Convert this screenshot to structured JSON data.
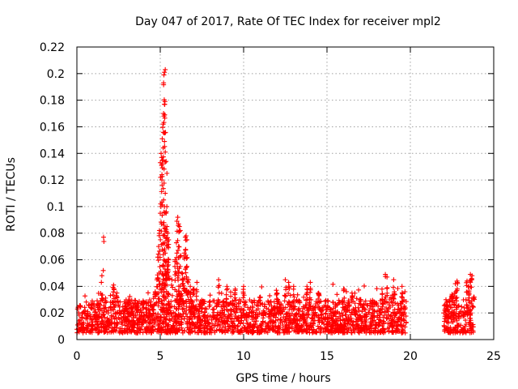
{
  "chart_data": {
    "type": "scatter",
    "title": "Day 047 of 2017, Rate Of TEC Index for receiver mpl2",
    "xlabel": "GPS time / hours",
    "ylabel": "ROTI / TECUs",
    "xlim": [
      0,
      25
    ],
    "ylim": [
      0,
      0.22
    ],
    "x_ticks": [
      {
        "value": 0,
        "label": "0"
      },
      {
        "value": 5,
        "label": "5"
      },
      {
        "value": 10,
        "label": "10"
      },
      {
        "value": 15,
        "label": "15"
      },
      {
        "value": 20,
        "label": "20"
      },
      {
        "value": 25,
        "label": "25"
      }
    ],
    "y_ticks": [
      {
        "value": 0,
        "label": "0"
      },
      {
        "value": 0.02,
        "label": "0.02"
      },
      {
        "value": 0.04,
        "label": "0.04"
      },
      {
        "value": 0.06,
        "label": "0.06"
      },
      {
        "value": 0.08,
        "label": "0.08"
      },
      {
        "value": 0.1,
        "label": "0.1"
      },
      {
        "value": 0.12,
        "label": "0.12"
      },
      {
        "value": 0.14,
        "label": "0.14"
      },
      {
        "value": 0.16,
        "label": "0.16"
      },
      {
        "value": 0.18,
        "label": "0.18"
      },
      {
        "value": 0.2,
        "label": "0.2"
      },
      {
        "value": 0.22,
        "label": "0.22"
      }
    ],
    "grid": true,
    "marker": "+",
    "color": "#ff0000",
    "series": [
      {
        "name": "ROTI mpl2",
        "data_ranges_hours": [
          [
            0,
            19.75
          ],
          [
            22.0,
            23.8
          ]
        ],
        "baseline_min": 0.005,
        "baseline_max": 0.03,
        "peak_points": [
          [
            1.6,
            0.077
          ],
          [
            1.5,
            0.048
          ],
          [
            2.2,
            0.041
          ],
          [
            2.4,
            0.035
          ],
          [
            4.7,
            0.036
          ],
          [
            4.8,
            0.045
          ],
          [
            4.85,
            0.062
          ],
          [
            4.9,
            0.07
          ],
          [
            4.95,
            0.082
          ],
          [
            5.0,
            0.095
          ],
          [
            5.0,
            0.133
          ],
          [
            5.05,
            0.14
          ],
          [
            5.1,
            0.12
          ],
          [
            5.1,
            0.124
          ],
          [
            5.12,
            0.151
          ],
          [
            5.15,
            0.135
          ],
          [
            5.18,
            0.162
          ],
          [
            5.2,
            0.17
          ],
          [
            5.22,
            0.168
          ],
          [
            5.25,
            0.177
          ],
          [
            5.28,
            0.179
          ],
          [
            5.2,
            0.193
          ],
          [
            5.22,
            0.199
          ],
          [
            5.25,
            0.201
          ],
          [
            5.3,
            0.203
          ],
          [
            5.3,
            0.141
          ],
          [
            5.35,
            0.134
          ],
          [
            5.4,
            0.125
          ],
          [
            5.3,
            0.11
          ],
          [
            5.2,
            0.105
          ],
          [
            5.25,
            0.1
          ],
          [
            5.35,
            0.095
          ],
          [
            5.4,
            0.085
          ],
          [
            5.45,
            0.08
          ],
          [
            5.5,
            0.075
          ],
          [
            5.3,
            0.065
          ],
          [
            5.5,
            0.06
          ],
          [
            5.2,
            0.056
          ],
          [
            5.4,
            0.05
          ],
          [
            5.7,
            0.045
          ],
          [
            5.9,
            0.06
          ],
          [
            6.0,
            0.089
          ],
          [
            6.05,
            0.092
          ],
          [
            6.1,
            0.087
          ],
          [
            6.15,
            0.085
          ],
          [
            6.2,
            0.082
          ],
          [
            6.1,
            0.07
          ],
          [
            6.0,
            0.065
          ],
          [
            6.2,
            0.055
          ],
          [
            6.3,
            0.05
          ],
          [
            6.4,
            0.045
          ],
          [
            6.5,
            0.077
          ],
          [
            6.55,
            0.078
          ],
          [
            6.6,
            0.075
          ],
          [
            6.45,
            0.065
          ],
          [
            6.6,
            0.055
          ],
          [
            6.7,
            0.045
          ],
          [
            6.8,
            0.04
          ],
          [
            7.0,
            0.038
          ],
          [
            7.2,
            0.043
          ],
          [
            8.5,
            0.045
          ],
          [
            9.0,
            0.04
          ],
          [
            9.5,
            0.038
          ],
          [
            10.0,
            0.04
          ],
          [
            11.0,
            0.032
          ],
          [
            12.0,
            0.035
          ],
          [
            12.5,
            0.045
          ],
          [
            12.7,
            0.043
          ],
          [
            13.0,
            0.04
          ],
          [
            13.8,
            0.04
          ],
          [
            14.0,
            0.043
          ],
          [
            14.5,
            0.035
          ],
          [
            16.0,
            0.038
          ],
          [
            16.5,
            0.035
          ],
          [
            17.0,
            0.03
          ],
          [
            18.3,
            0.038
          ],
          [
            18.5,
            0.049
          ],
          [
            18.6,
            0.047
          ],
          [
            19.0,
            0.045
          ],
          [
            19.5,
            0.04
          ],
          [
            22.5,
            0.034
          ],
          [
            22.7,
            0.042
          ],
          [
            22.8,
            0.044
          ],
          [
            23.4,
            0.044
          ],
          [
            23.6,
            0.049
          ],
          [
            23.7,
            0.048
          ],
          [
            23.5,
            0.04
          ],
          [
            23.8,
            0.032
          ]
        ]
      }
    ]
  }
}
